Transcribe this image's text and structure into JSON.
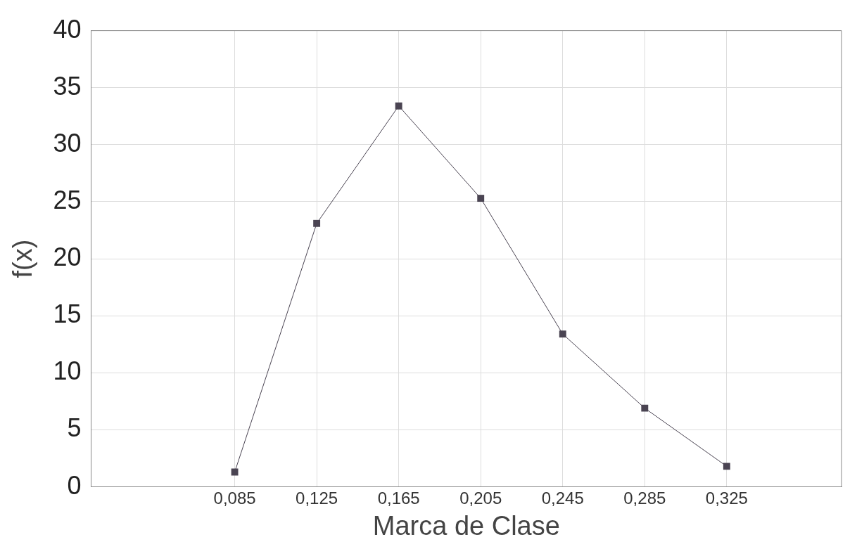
{
  "chart_data": {
    "type": "line",
    "xlabel": "Marca de Clase",
    "ylabel": "f(x)",
    "categories": [
      "0,085",
      "0,125",
      "0,165",
      "0,205",
      "0,245",
      "0,285",
      "0,325"
    ],
    "series": [
      {
        "color": "#4a4452",
        "values": [
          1.3,
          23.1,
          33.4,
          25.3,
          13.4,
          6.9,
          1.8
        ]
      }
    ],
    "ylim": [
      0,
      40
    ],
    "yticks": [
      0,
      5,
      10,
      15,
      20,
      25,
      30,
      35,
      40
    ],
    "grid": true,
    "marker": "square",
    "line_style": "solid",
    "legend": false
  }
}
